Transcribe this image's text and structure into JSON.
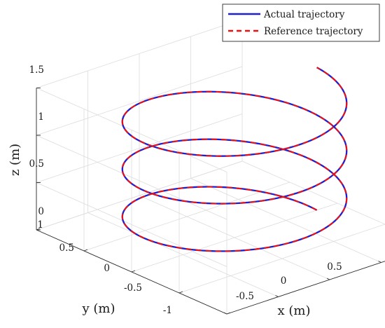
{
  "chart_data": {
    "type": "line",
    "projection": "3d",
    "xlabel": "x (m)",
    "ylabel": "y (m)",
    "zlabel": "z (m)",
    "xlim": [
      -1,
      1
    ],
    "ylim": [
      -1,
      1
    ],
    "zlim": [
      0,
      1.5
    ],
    "xticks": [
      "-0.5",
      "0",
      "0.5"
    ],
    "yticks": [
      "-1",
      "-0.5",
      "0",
      "0.5",
      "1"
    ],
    "zticks": [
      "0",
      "0.5",
      "1",
      "1.5"
    ],
    "grid": true,
    "legend_position": "top-right",
    "series": [
      {
        "name": "Actual trajectory",
        "color": "#1f1fd0",
        "style": "solid",
        "parametric": {
          "x": "0.8·cos(t)",
          "y": "0.8·sin(t)",
          "z": "0.08·t",
          "t_range": [
            0,
            18.85
          ]
        }
      },
      {
        "name": "Reference trajectory",
        "color": "#ee1111",
        "style": "dashed",
        "parametric": {
          "x": "0.8·cos(t)",
          "y": "0.8·sin(t)",
          "z": "0.08·t",
          "t_range": [
            0,
            18.85
          ]
        }
      }
    ]
  }
}
